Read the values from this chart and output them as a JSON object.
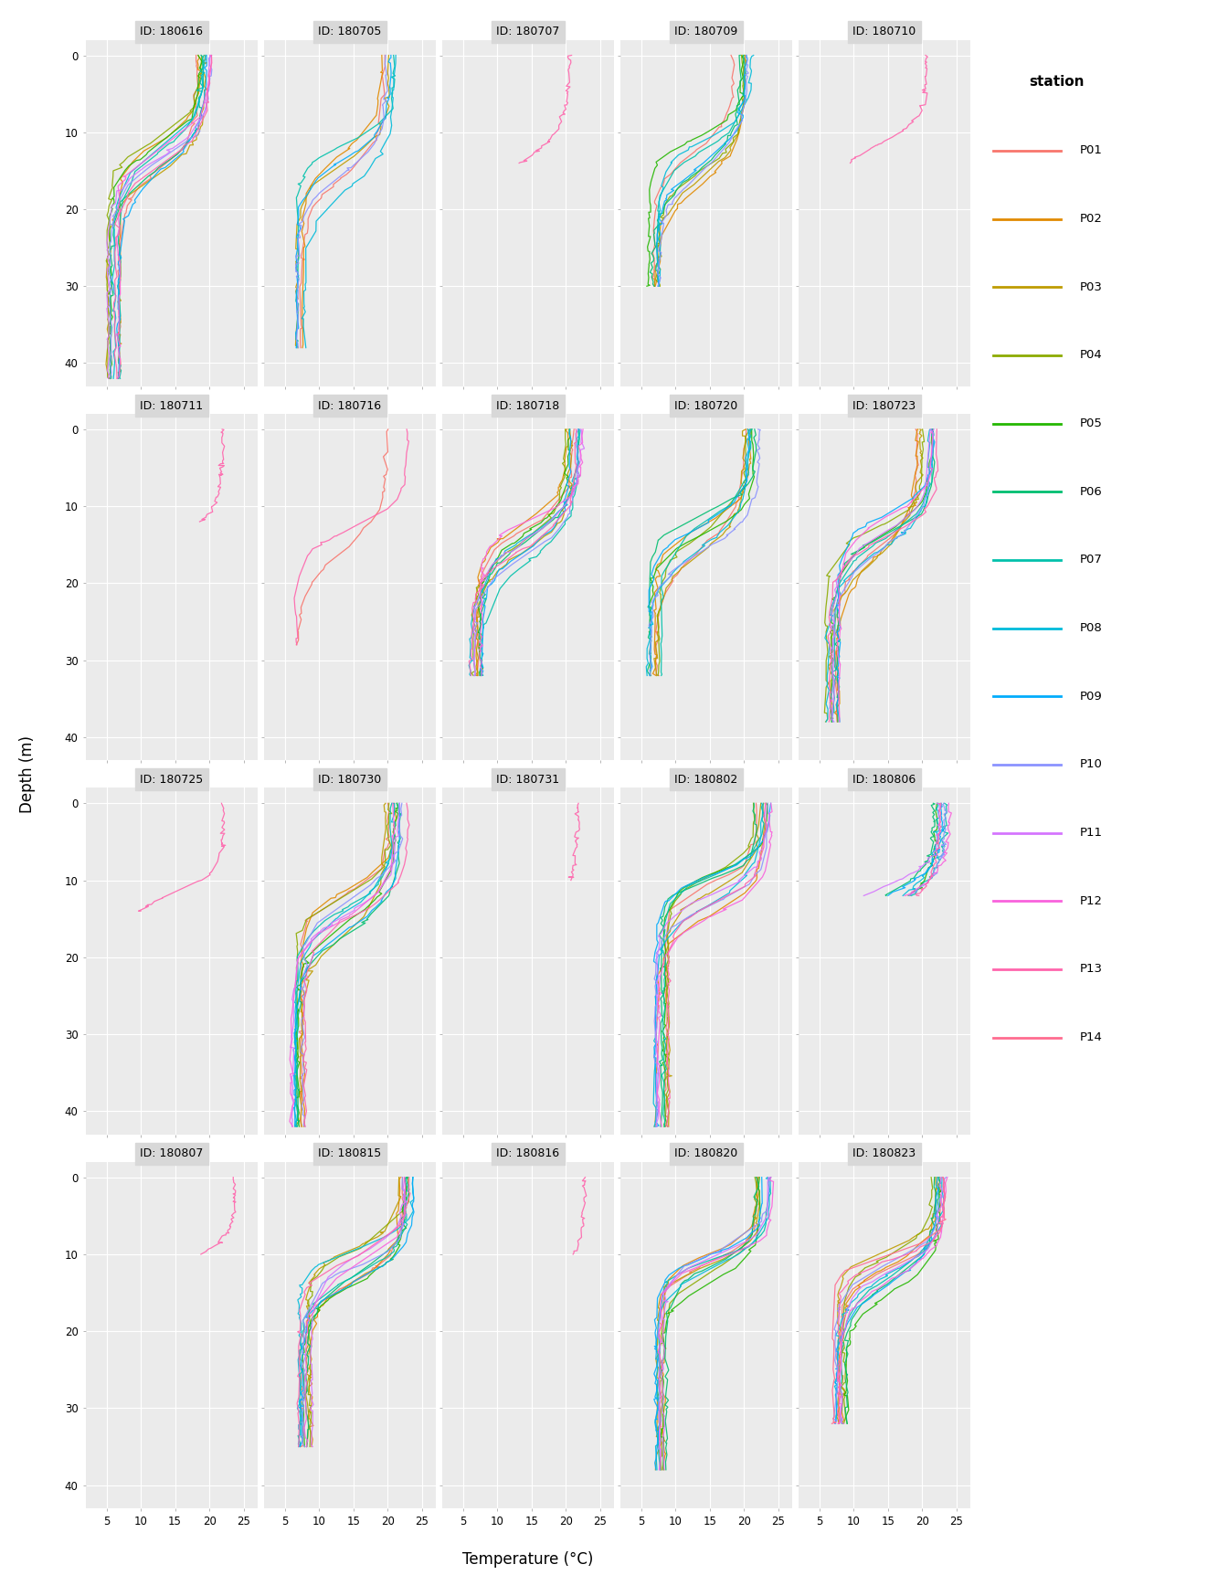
{
  "cruise_ids": [
    "180616",
    "180705",
    "180707",
    "180709",
    "180710",
    "180711",
    "180716",
    "180718",
    "180720",
    "180723",
    "180725",
    "180730",
    "180731",
    "180802",
    "180806",
    "180807",
    "180815",
    "180816",
    "180820",
    "180823"
  ],
  "stations": [
    "P01",
    "P02",
    "P03",
    "P04",
    "P05",
    "P06",
    "P07",
    "P08",
    "P09",
    "P10",
    "P11",
    "P12",
    "P13",
    "P14"
  ],
  "station_colors": {
    "P01": "#F8766D",
    "P02": "#E18A00",
    "P03": "#BE9C00",
    "P04": "#8CAB00",
    "P05": "#24B700",
    "P06": "#00BE70",
    "P07": "#00C1AB",
    "P08": "#00BBDA",
    "P09": "#00ACFC",
    "P10": "#8B93FF",
    "P11": "#D575FE",
    "P12": "#F962DD",
    "P13": "#FF65AC",
    "P14": "#FF6C90"
  },
  "xlim": [
    2,
    27
  ],
  "ylim": [
    43,
    -2
  ],
  "xticks": [
    5,
    10,
    15,
    20,
    25
  ],
  "yticks": [
    0,
    10,
    20,
    30,
    40
  ],
  "xlabel": "Temperature (°C)",
  "ylabel": "Depth (m)",
  "panel_bg": "#EBEBEB",
  "fig_bg": "white",
  "grid_color": "white",
  "nrows": 4,
  "ncols": 5,
  "cruise_stations": {
    "180616": [
      "P01",
      "P02",
      "P03",
      "P04",
      "P05",
      "P06",
      "P07",
      "P08",
      "P09",
      "P10",
      "P11",
      "P12",
      "P13"
    ],
    "180705": [
      "P01",
      "P02",
      "P03",
      "P07",
      "P08",
      "P09",
      "P10"
    ],
    "180707": [
      "P13"
    ],
    "180709": [
      "P01",
      "P02",
      "P03",
      "P04",
      "P05",
      "P06",
      "P07",
      "P08",
      "P09",
      "P10"
    ],
    "180710": [
      "P13"
    ],
    "180711": [
      "P13"
    ],
    "180716": [
      "P01",
      "P13"
    ],
    "180718": [
      "P01",
      "P02",
      "P03",
      "P04",
      "P05",
      "P06",
      "P07",
      "P08",
      "P09",
      "P10",
      "P11",
      "P12",
      "P13"
    ],
    "180720": [
      "P01",
      "P02",
      "P03",
      "P04",
      "P05",
      "P06",
      "P07",
      "P08",
      "P09",
      "P10"
    ],
    "180723": [
      "P01",
      "P02",
      "P03",
      "P04",
      "P05",
      "P06",
      "P07",
      "P08",
      "P09",
      "P10",
      "P11",
      "P12",
      "P13"
    ],
    "180725": [
      "P13"
    ],
    "180730": [
      "P01",
      "P02",
      "P03",
      "P04",
      "P05",
      "P06",
      "P07",
      "P08",
      "P09",
      "P10",
      "P11",
      "P12",
      "P13"
    ],
    "180731": [
      "P13"
    ],
    "180802": [
      "P01",
      "P02",
      "P03",
      "P04",
      "P05",
      "P06",
      "P07",
      "P08",
      "P09",
      "P10",
      "P11",
      "P12",
      "P13"
    ],
    "180806": [
      "P05",
      "P06",
      "P07",
      "P08",
      "P09",
      "P10",
      "P11",
      "P12",
      "P13"
    ],
    "180807": [
      "P13"
    ],
    "180815": [
      "P01",
      "P02",
      "P03",
      "P04",
      "P05",
      "P06",
      "P07",
      "P08",
      "P09",
      "P10",
      "P11",
      "P12",
      "P13"
    ],
    "180816": [
      "P13"
    ],
    "180820": [
      "P01",
      "P02",
      "P03",
      "P04",
      "P05",
      "P06",
      "P07",
      "P08",
      "P09",
      "P10",
      "P11",
      "P12"
    ],
    "180823": [
      "P01",
      "P02",
      "P03",
      "P04",
      "P05",
      "P06",
      "P07",
      "P08",
      "P09",
      "P10",
      "P11",
      "P12",
      "P13",
      "P14"
    ]
  },
  "cruise_depth": {
    "180616": 42,
    "180705": 38,
    "180707": 14,
    "180709": 30,
    "180710": 14,
    "180711": 12,
    "180716": 28,
    "180718": 32,
    "180720": 32,
    "180723": 38,
    "180725": 14,
    "180730": 42,
    "180731": 10,
    "180802": 42,
    "180806": 12,
    "180807": 10,
    "180815": 35,
    "180816": 10,
    "180820": 38,
    "180823": 32
  }
}
